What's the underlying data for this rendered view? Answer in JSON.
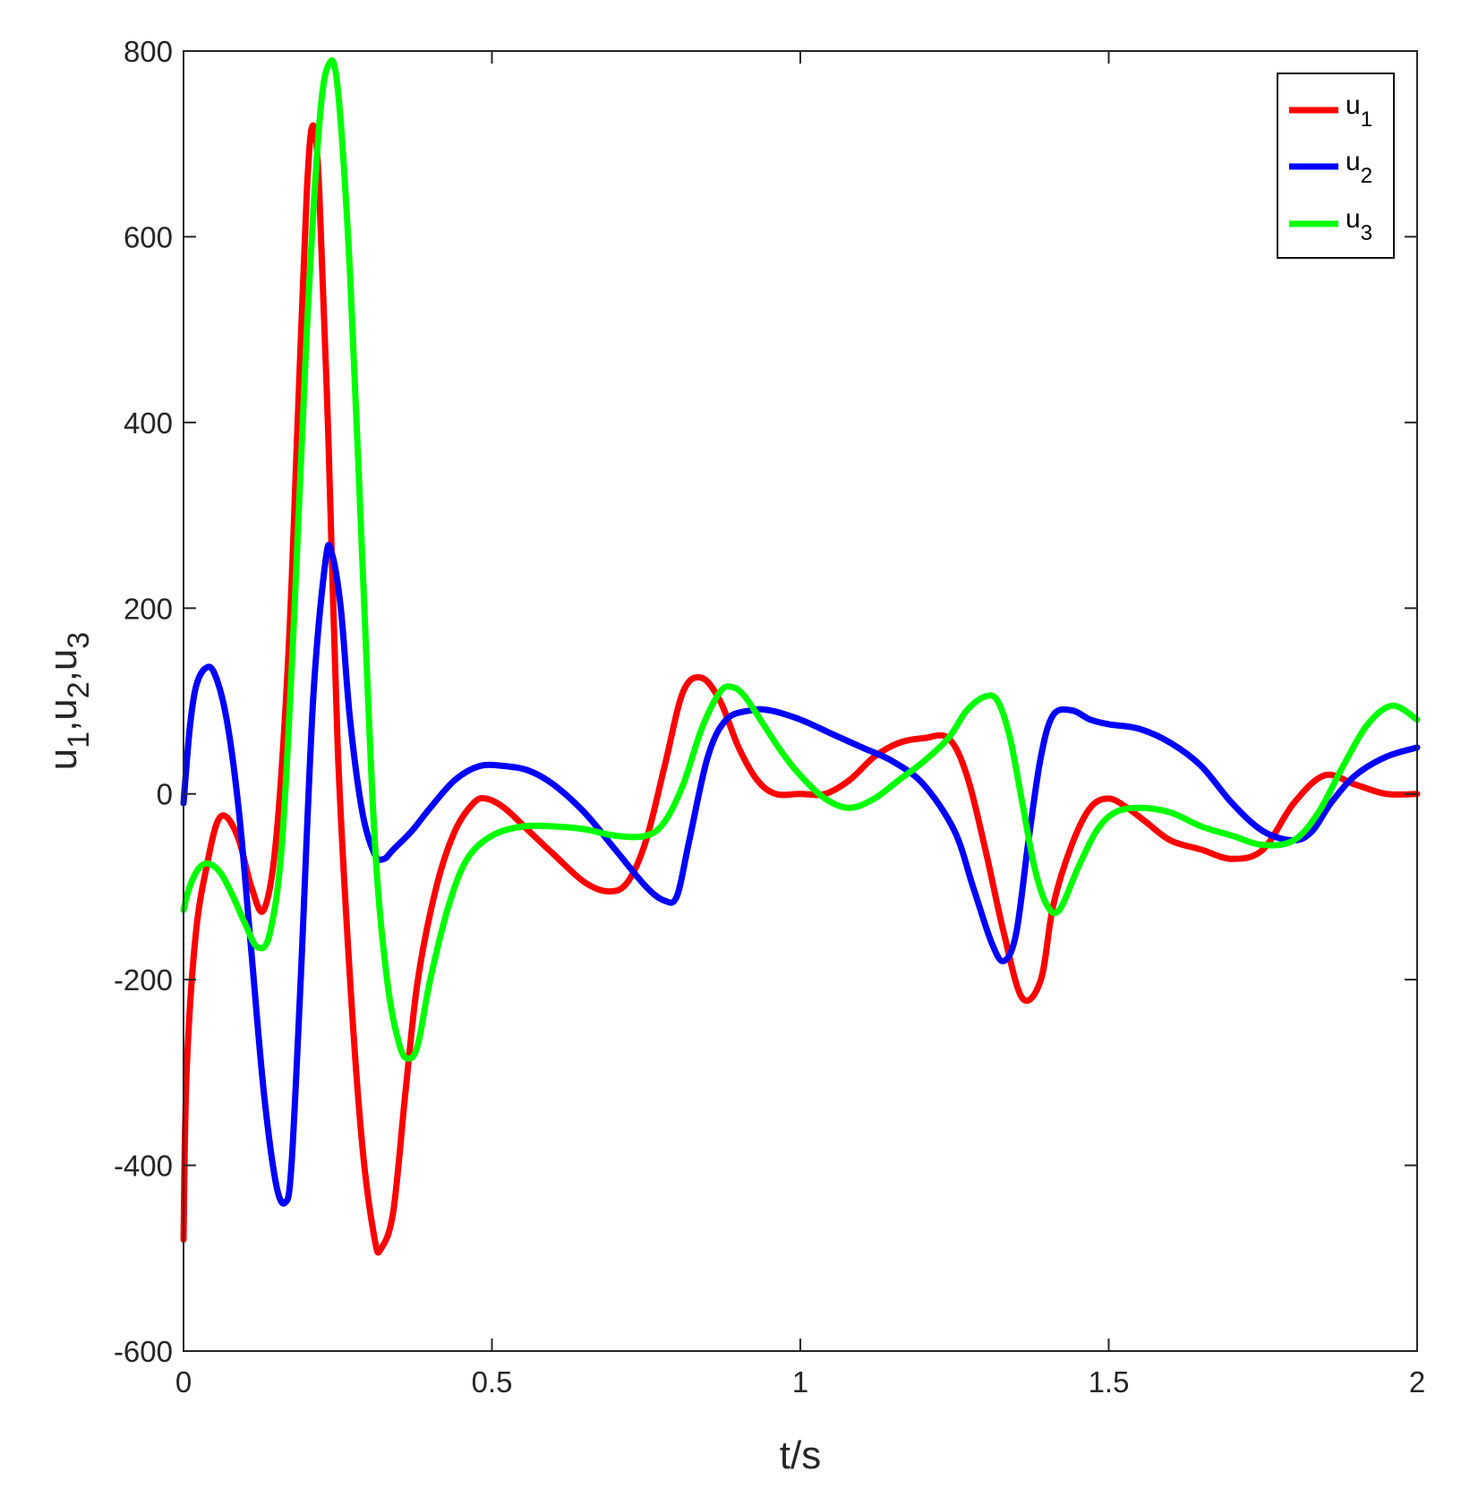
{
  "chart_data": {
    "type": "line",
    "xlabel": "t/s",
    "ylabel": {
      "parts": [
        "u",
        "1",
        ",u",
        "2",
        ",u",
        "3"
      ]
    },
    "xlim": [
      0,
      2
    ],
    "ylim": [
      -600,
      800
    ],
    "x_ticks": [
      0,
      0.5,
      1,
      1.5,
      2
    ],
    "x_tick_labels": [
      "0",
      "0.5",
      "1",
      "1.5",
      "2"
    ],
    "y_ticks": [
      -600,
      -400,
      -200,
      0,
      200,
      400,
      600,
      800
    ],
    "y_tick_labels": [
      "-600",
      "-400",
      "-200",
      "0",
      "200",
      "400",
      "600",
      "800"
    ],
    "grid": false,
    "legend_position": "top-right",
    "series": [
      {
        "name": "u1",
        "legend_main": "u",
        "legend_sub": "1",
        "color": "#ff0000",
        "x": [
          0,
          0.005,
          0.02,
          0.04,
          0.055,
          0.07,
          0.09,
          0.11,
          0.13,
          0.15,
          0.17,
          0.185,
          0.2,
          0.21,
          0.22,
          0.235,
          0.25,
          0.27,
          0.29,
          0.31,
          0.32,
          0.34,
          0.36,
          0.38,
          0.41,
          0.44,
          0.47,
          0.49,
          0.52,
          0.56,
          0.6,
          0.65,
          0.69,
          0.72,
          0.75,
          0.78,
          0.81,
          0.84,
          0.87,
          0.9,
          0.93,
          0.96,
          1.0,
          1.04,
          1.08,
          1.12,
          1.16,
          1.2,
          1.24,
          1.27,
          1.3,
          1.33,
          1.36,
          1.39,
          1.41,
          1.44,
          1.47,
          1.5,
          1.53,
          1.56,
          1.6,
          1.65,
          1.7,
          1.75,
          1.8,
          1.85,
          1.9,
          1.95,
          2.0
        ],
        "y": [
          -480,
          -300,
          -150,
          -70,
          -30,
          -25,
          -50,
          -100,
          -125,
          -50,
          150,
          400,
          650,
          720,
          650,
          380,
          50,
          -200,
          -380,
          -480,
          -490,
          -450,
          -320,
          -200,
          -100,
          -40,
          -10,
          -5,
          -15,
          -40,
          -65,
          -95,
          -105,
          -95,
          -50,
          30,
          110,
          125,
          100,
          50,
          15,
          0,
          0,
          0,
          15,
          40,
          55,
          60,
          60,
          20,
          -60,
          -150,
          -220,
          -200,
          -120,
          -55,
          -15,
          -5,
          -15,
          -30,
          -50,
          -60,
          -70,
          -60,
          -10,
          20,
          10,
          0,
          0
        ]
      },
      {
        "name": "u2",
        "legend_main": "u",
        "legend_sub": "2",
        "color": "#0000ff",
        "x": [
          0,
          0.01,
          0.02,
          0.035,
          0.05,
          0.07,
          0.09,
          0.11,
          0.13,
          0.15,
          0.165,
          0.175,
          0.19,
          0.21,
          0.23,
          0.24,
          0.255,
          0.27,
          0.29,
          0.31,
          0.325,
          0.34,
          0.37,
          0.4,
          0.44,
          0.48,
          0.52,
          0.56,
          0.6,
          0.65,
          0.7,
          0.75,
          0.78,
          0.8,
          0.82,
          0.85,
          0.88,
          0.92,
          0.95,
          1.0,
          1.05,
          1.1,
          1.15,
          1.2,
          1.25,
          1.28,
          1.31,
          1.33,
          1.35,
          1.37,
          1.39,
          1.41,
          1.44,
          1.47,
          1.5,
          1.55,
          1.6,
          1.65,
          1.7,
          1.75,
          1.8,
          1.83,
          1.86,
          1.9,
          1.95,
          2.0
        ],
        "y": [
          -10,
          70,
          115,
          135,
          130,
          80,
          -20,
          -170,
          -320,
          -420,
          -440,
          -400,
          -200,
          100,
          250,
          260,
          200,
          80,
          -20,
          -65,
          -70,
          -60,
          -40,
          -15,
          15,
          30,
          30,
          25,
          10,
          -20,
          -60,
          -100,
          -115,
          -110,
          -50,
          40,
          80,
          90,
          90,
          80,
          65,
          50,
          35,
          10,
          -40,
          -100,
          -160,
          -180,
          -150,
          -50,
          40,
          85,
          90,
          80,
          75,
          70,
          55,
          30,
          -10,
          -40,
          -50,
          -40,
          -10,
          20,
          40,
          50
        ]
      },
      {
        "name": "u3",
        "legend_main": "u",
        "legend_sub": "3",
        "color": "#00ff00",
        "x": [
          0,
          0.01,
          0.025,
          0.04,
          0.06,
          0.08,
          0.1,
          0.12,
          0.14,
          0.16,
          0.18,
          0.2,
          0.22,
          0.235,
          0.25,
          0.27,
          0.29,
          0.31,
          0.33,
          0.35,
          0.365,
          0.38,
          0.4,
          0.43,
          0.46,
          0.5,
          0.55,
          0.6,
          0.65,
          0.7,
          0.75,
          0.78,
          0.81,
          0.84,
          0.87,
          0.89,
          0.91,
          0.94,
          0.97,
          1.0,
          1.04,
          1.08,
          1.12,
          1.16,
          1.2,
          1.24,
          1.27,
          1.3,
          1.32,
          1.34,
          1.36,
          1.38,
          1.4,
          1.42,
          1.45,
          1.48,
          1.51,
          1.55,
          1.6,
          1.65,
          1.7,
          1.75,
          1.8,
          1.84,
          1.88,
          1.92,
          1.96,
          2.0
        ],
        "y": [
          -125,
          -100,
          -80,
          -75,
          -85,
          -110,
          -140,
          -165,
          -150,
          -50,
          200,
          500,
          720,
          785,
          760,
          560,
          250,
          -50,
          -200,
          -270,
          -285,
          -270,
          -200,
          -120,
          -70,
          -45,
          -35,
          -35,
          -38,
          -45,
          -45,
          -30,
          10,
          70,
          110,
          115,
          105,
          75,
          45,
          20,
          -5,
          -15,
          -5,
          15,
          35,
          60,
          90,
          105,
          100,
          60,
          -10,
          -80,
          -120,
          -125,
          -80,
          -40,
          -20,
          -15,
          -20,
          -35,
          -45,
          -55,
          -50,
          -20,
          30,
          75,
          95,
          80
        ]
      }
    ]
  }
}
